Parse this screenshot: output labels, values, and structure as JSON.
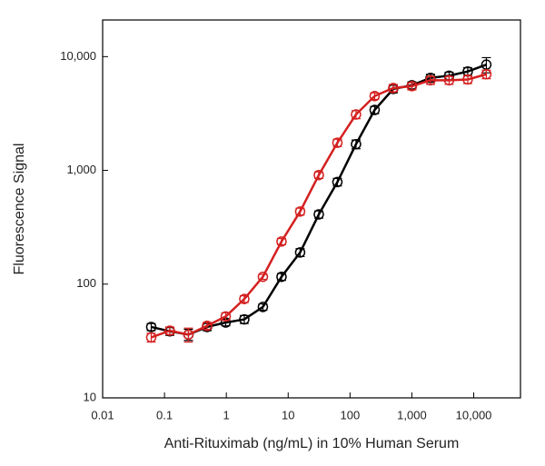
{
  "chart_data": {
    "type": "line",
    "xlabel": "Anti-Rituximab (ng/mL) in 10% Human Serum",
    "ylabel": "Fluorescence Signal",
    "x": [
      0.061,
      0.122,
      0.244,
      0.488,
      0.977,
      1.95,
      3.9,
      7.8,
      15.6,
      31.25,
      62.5,
      125,
      250,
      500,
      1000,
      2000,
      4000,
      8000,
      16000
    ],
    "series": [
      {
        "color": "#000000",
        "values": [
          42,
          38.5,
          36,
          42,
          46,
          49,
          63,
          116,
          190,
          410,
          790,
          1700,
          3400,
          5200,
          5600,
          6500,
          6800,
          7400,
          8500
        ],
        "errors": [
          3,
          3,
          4,
          3,
          3,
          4,
          4,
          8,
          15,
          30,
          60,
          150,
          250,
          400,
          400,
          500,
          500,
          600,
          1300
        ]
      },
      {
        "color": "#d42020",
        "values": [
          34,
          39,
          36,
          43,
          52,
          74,
          116,
          237,
          435,
          910,
          1750,
          3100,
          4500,
          5300,
          5500,
          6200,
          6200,
          6300,
          7000
        ],
        "errors": [
          3,
          3,
          5,
          3,
          4,
          5,
          6,
          15,
          30,
          60,
          130,
          250,
          300,
          400,
          400,
          500,
          500,
          500,
          600
        ]
      }
    ],
    "xscale": "log",
    "yscale": "log",
    "xlim": [
      0.01,
      57000
    ],
    "ylim": [
      10,
      21000
    ],
    "xticks": [
      0.01,
      0.1,
      1,
      10,
      100,
      {
        "value": 1000,
        "label": "1,000"
      },
      {
        "value": 10000,
        "label": "10,000"
      }
    ],
    "yticks": [
      10,
      100,
      {
        "value": 1000,
        "label": "1,000"
      },
      {
        "value": 10000,
        "label": "10,000"
      }
    ]
  }
}
